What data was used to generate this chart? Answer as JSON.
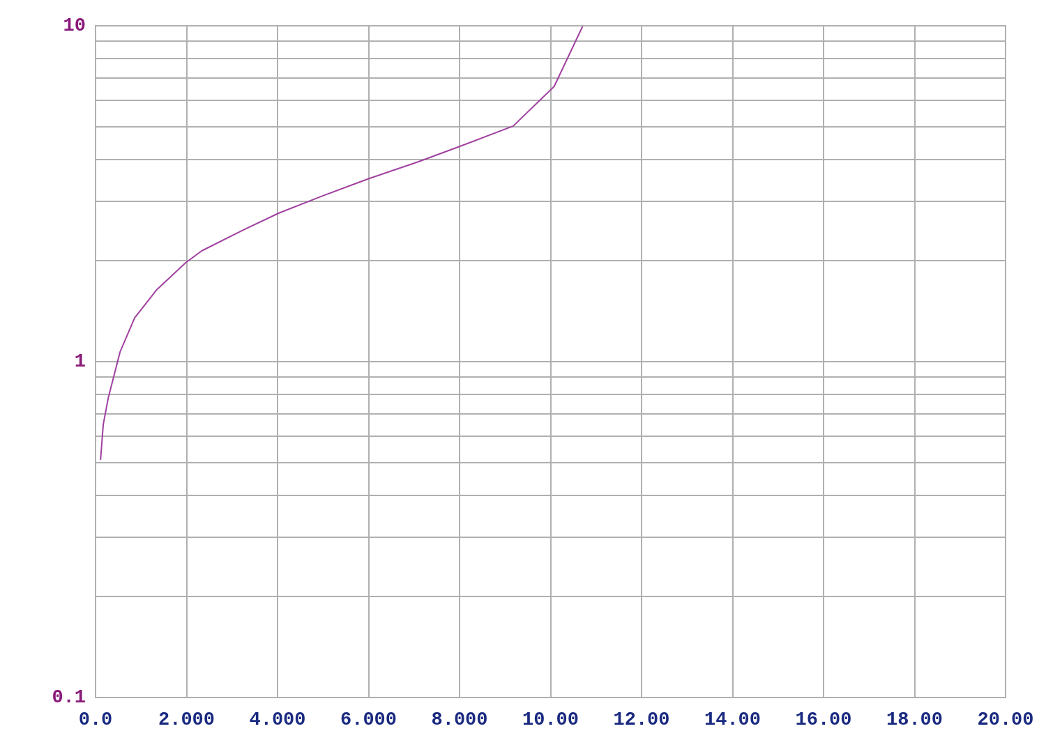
{
  "chart_data": {
    "type": "line",
    "log": "y",
    "grid": true,
    "marker": "none",
    "line_style": "solid",
    "xlim": [
      0,
      20
    ],
    "ylim": [
      0.1,
      10
    ],
    "xticks": [
      {
        "value": 0,
        "label": "0.0"
      },
      {
        "value": 2,
        "label": "2.000"
      },
      {
        "value": 4,
        "label": "4.000"
      },
      {
        "value": 6,
        "label": "6.000"
      },
      {
        "value": 8,
        "label": "8.000"
      },
      {
        "value": 10,
        "label": "10.00"
      },
      {
        "value": 12,
        "label": "12.00"
      },
      {
        "value": 14,
        "label": "14.00"
      },
      {
        "value": 16,
        "label": "16.00"
      },
      {
        "value": 18,
        "label": "18.00"
      },
      {
        "value": 20,
        "label": "20.00"
      }
    ],
    "yticks": [
      0.1,
      {
        "value": 0.2,
        "label": null
      },
      {
        "value": 0.3,
        "label": null
      },
      {
        "value": 0.4,
        "label": null
      },
      {
        "value": 0.5,
        "label": null
      },
      {
        "value": 0.6,
        "label": null
      },
      {
        "value": 0.7,
        "label": null
      },
      {
        "value": 0.8,
        "label": null
      },
      {
        "value": 0.9,
        "label": null
      },
      1,
      {
        "value": 2,
        "label": null
      },
      {
        "value": 3,
        "label": null
      },
      {
        "value": 4,
        "label": null
      },
      {
        "value": 5,
        "label": null
      },
      {
        "value": 6,
        "label": null
      },
      {
        "value": 7,
        "label": null
      },
      {
        "value": 8,
        "label": null
      },
      {
        "value": 9,
        "label": null
      },
      10
    ],
    "series": [
      {
        "color": "#a040a0",
        "x": [
          0.11,
          0.17,
          0.28,
          0.54,
          0.86,
          1.35,
          1.98,
          2.34,
          3.26,
          4.03,
          4.95,
          5.99,
          7.1,
          8.02,
          9.18,
          10.08,
          10.71
        ],
        "values": [
          0.51,
          0.65,
          0.78,
          1.07,
          1.35,
          1.64,
          1.97,
          2.14,
          2.47,
          2.77,
          3.1,
          3.5,
          3.94,
          4.38,
          5.03,
          6.6,
          10
        ]
      }
    ]
  }
}
